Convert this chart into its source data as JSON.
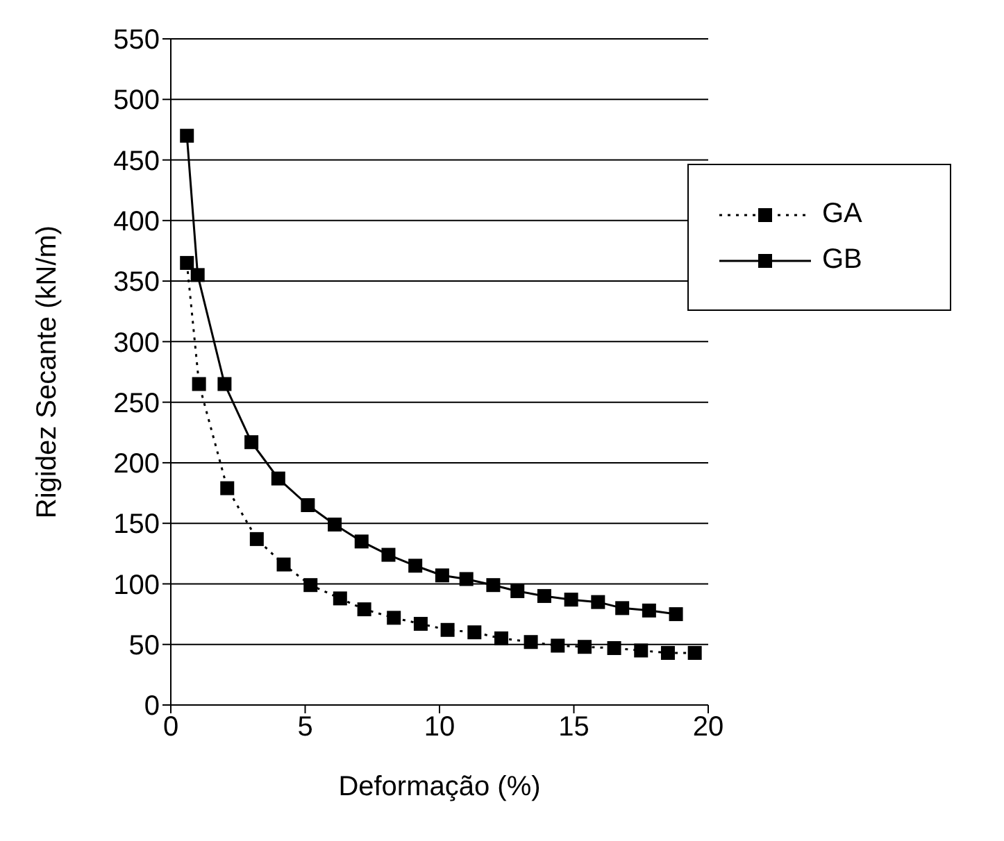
{
  "chart_data": {
    "type": "line",
    "xlabel": "Deformação (%)",
    "ylabel": "Rigidez Secante (kN/m)",
    "xlim": [
      0,
      20
    ],
    "xticks": [
      0,
      5,
      10,
      15,
      20
    ],
    "ylim": [
      0,
      550
    ],
    "yticks": [
      0,
      50,
      100,
      150,
      200,
      250,
      300,
      350,
      400,
      450,
      500,
      550
    ],
    "grid": "y",
    "legend": "top right",
    "marker": "square",
    "series": [
      {
        "name": "GA",
        "color": "#000000",
        "line_style": "dotted",
        "x": [
          0.6,
          1.05,
          2.1,
          3.2,
          4.2,
          5.2,
          6.3,
          7.2,
          8.3,
          9.3,
          10.3,
          11.3,
          12.3,
          13.4,
          14.4,
          15.4,
          16.5,
          17.5,
          18.5,
          19.5
        ],
        "values": [
          365,
          265,
          179,
          137,
          116,
          99,
          88,
          79,
          72,
          67,
          62,
          60,
          55,
          52,
          49,
          48,
          47,
          45,
          43,
          43
        ]
      },
      {
        "name": "GB",
        "color": "#000000",
        "line_style": "solid",
        "x": [
          0.6,
          1,
          2,
          3,
          4,
          5.1,
          6.1,
          7.1,
          8.1,
          9.1,
          10.1,
          11,
          12,
          12.9,
          13.9,
          14.9,
          15.9,
          16.8,
          17.8,
          18.8
        ],
        "values": [
          470,
          355,
          265,
          217,
          187,
          165,
          149,
          135,
          124,
          115,
          107,
          104,
          99,
          94,
          90,
          87,
          85,
          80,
          78,
          75
        ]
      }
    ]
  }
}
